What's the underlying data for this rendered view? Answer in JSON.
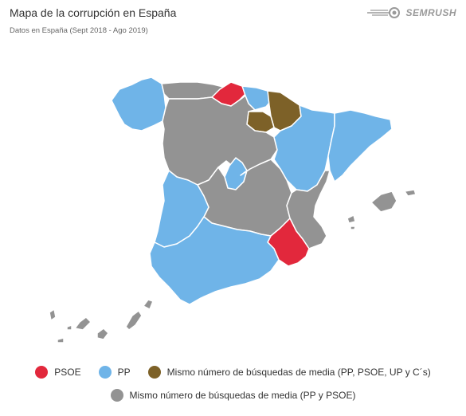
{
  "header": {
    "title": "Mapa de la corrupción en España",
    "subtitle": "Datos en España (Sept 2018 - Ago 2019)",
    "brand": "SEMRUSH",
    "brand_icon": "semrush-flame-icon"
  },
  "colors": {
    "psoe": "#e2283c",
    "pp": "#6fb4e8",
    "mixed_all": "#7d6128",
    "mixed_pp_psoe": "#939393",
    "border": "#ffffff"
  },
  "legend": {
    "psoe": "PSOE",
    "pp": "PP",
    "mixed_all": "Mismo número de búsquedas de media (PP, PSOE, UP y C´s)",
    "mixed_pp_psoe": "Mismo número de búsquedas de media (PP y PSOE)"
  },
  "regions": [
    {
      "name": "Galicia",
      "category": "pp"
    },
    {
      "name": "Asturias",
      "category": "mixed_pp_psoe"
    },
    {
      "name": "Cantabria",
      "category": "psoe"
    },
    {
      "name": "País Vasco",
      "category": "pp"
    },
    {
      "name": "Navarra",
      "category": "mixed_all"
    },
    {
      "name": "La Rioja",
      "category": "mixed_all"
    },
    {
      "name": "Aragón",
      "category": "pp"
    },
    {
      "name": "Cataluña",
      "category": "pp"
    },
    {
      "name": "Castilla y León",
      "category": "mixed_pp_psoe"
    },
    {
      "name": "Madrid",
      "category": "pp"
    },
    {
      "name": "Castilla-La Mancha",
      "category": "mixed_pp_psoe"
    },
    {
      "name": "Extremadura",
      "category": "pp"
    },
    {
      "name": "Comunidad Valenciana",
      "category": "mixed_pp_psoe"
    },
    {
      "name": "Murcia",
      "category": "psoe"
    },
    {
      "name": "Andalucía",
      "category": "pp"
    },
    {
      "name": "Islas Baleares",
      "category": "mixed_pp_psoe"
    },
    {
      "name": "Islas Canarias",
      "category": "mixed_pp_psoe"
    }
  ]
}
